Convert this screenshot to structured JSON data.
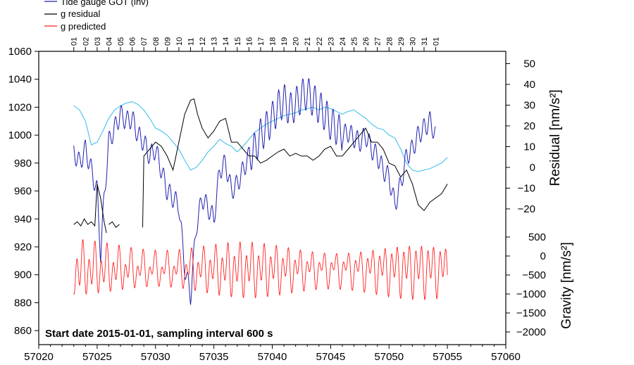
{
  "chart_data": {
    "type": "line",
    "title": "",
    "annotation": "Start date 2015-01-01, sampling interval 600 s",
    "xlim": [
      57020,
      57060
    ],
    "x_ticks": [
      57020,
      57025,
      57030,
      57035,
      57040,
      57045,
      57050,
      57055,
      57060
    ],
    "day_ticks": [
      "01",
      "02",
      "03",
      "04",
      "05",
      "06",
      "07",
      "08",
      "09",
      "10",
      "11",
      "12",
      "13",
      "14",
      "15",
      "16",
      "17",
      "18",
      "19",
      "20",
      "21",
      "22",
      "23",
      "24",
      "25",
      "26",
      "27",
      "28",
      "29",
      "30",
      "31",
      "01"
    ],
    "day_tick_start": 57023,
    "left_axis": {
      "ylim": [
        850,
        1060
      ],
      "ticks": [
        860,
        880,
        900,
        920,
        940,
        960,
        980,
        1000,
        1020,
        1040,
        1060
      ],
      "label": ""
    },
    "right_axis_residual": {
      "label": "Residual [nm/s²]",
      "ticks": [
        -20,
        -10,
        0,
        10,
        20,
        30,
        40,
        50
      ],
      "tick_labels": [
        "−20",
        "−10",
        "0",
        "10",
        "20",
        "30",
        "40",
        "50"
      ]
    },
    "right_axis_gravity": {
      "label": "Gravity [nm/s²]",
      "ticks": [
        500,
        0,
        -500,
        -1000,
        -1500,
        -2000
      ],
      "tick_labels": [
        "500",
        "0",
        "−500",
        "−1000",
        "−1500",
        "−2000"
      ]
    },
    "legend": {
      "placement": "top-left",
      "entries": [
        {
          "name": "Tide gauge GOT (inv)",
          "color": "#2020b0"
        },
        {
          "name": "g residual",
          "color": "#000000"
        },
        {
          "name": "g predicted",
          "color": "#ff2020"
        }
      ]
    },
    "series": [
      {
        "name": "Tide gauge GOT (inv)",
        "color": "#2020b0",
        "note": "hourly-scale oscillating trace, left axis units",
        "x": [
          57023.0,
          57023.5,
          57024.0,
          57024.5,
          57025.0,
          57025.3,
          57025.6,
          57026.0,
          57026.5,
          57027.0,
          57027.5,
          57028.0,
          57028.5,
          57029.0,
          57029.5,
          57030.0,
          57030.5,
          57031.0,
          57031.5,
          57032.0,
          57032.5,
          57033.0,
          57033.5,
          57034.0,
          57034.5,
          57035.0,
          57035.5,
          57036.0,
          57036.5,
          57037.0,
          57037.5,
          57038.0,
          57038.5,
          57039.0,
          57039.5,
          57040.0,
          57040.5,
          57041.0,
          57041.5,
          57042.0,
          57042.5,
          57043.0,
          57043.5,
          57044.0,
          57044.5,
          57045.0,
          57045.5,
          57046.0,
          57046.5,
          57047.0,
          57047.5,
          57048.0,
          57048.5,
          57049.0,
          57049.5,
          57050.0,
          57050.5,
          57051.0,
          57051.5,
          57052.0,
          57052.5,
          57053.0,
          57053.5,
          57054.0
        ],
        "values": [
          988,
          980,
          990,
          975,
          960,
          915,
          955,
          995,
          1005,
          1015,
          1010,
          1012,
          1000,
          995,
          985,
          990,
          975,
          960,
          955,
          950,
          905,
          885,
          935,
          955,
          948,
          940,
          975,
          980,
          960,
          965,
          975,
          985,
          990,
          1000,
          1005,
          1012,
          1020,
          1025,
          1018,
          1022,
          1028,
          1030,
          1025,
          1020,
          1015,
          1008,
          1005,
          1000,
          1002,
          998,
          995,
          1000,
          990,
          985,
          975,
          970,
          950,
          965,
          985,
          990,
          1000,
          1005,
          1010,
          1000
        ]
      },
      {
        "name": "g residual",
        "color": "#000000",
        "note": "plotted on left axis scale",
        "segments": [
          {
            "x": [
              57023.0,
              57023.3,
              57023.6,
              57023.9,
              57024.2,
              57024.5,
              57024.8,
              57025.0,
              57025.3,
              57025.6,
              57025.8
            ],
            "values": [
              936,
              938,
              935,
              940,
              936,
              938,
              935,
              965,
              955,
              938,
              930
            ]
          },
          {
            "x": [
              57026.0,
              57026.3,
              57026.6,
              57026.9
            ],
            "values": [
              936,
              938,
              934,
              936
            ]
          },
          {
            "x": [
              57028.9,
              57029.0,
              57029.5,
              57030.0,
              57030.5,
              57031.0,
              57031.5,
              57032.0,
              57032.5,
              57033.0,
              57033.3,
              57033.6,
              57034.0,
              57034.5,
              57035.0,
              57035.5,
              57036.0,
              57036.5,
              57037.0,
              57037.5,
              57038.0,
              57038.5,
              57039.0,
              57039.5,
              57040.0,
              57040.5,
              57041.0,
              57041.5,
              57042.0,
              57042.5,
              57043.0,
              57043.5,
              57044.0,
              57044.5,
              57045.0,
              57045.5,
              57046.0,
              57046.5,
              57047.0,
              57047.5,
              57048.0,
              57048.5,
              57049.0,
              57049.5,
              57050.0,
              57050.5,
              57051.0,
              57051.5,
              57052.0,
              57052.5,
              57053.0,
              57053.5,
              57054.0,
              57054.5,
              57055.0
            ],
            "values": [
              934,
              985,
              990,
              995,
              992,
              985,
              975,
              995,
              1015,
              1025,
              1026,
              1015,
              1005,
              998,
              1003,
              1010,
              1012,
              995,
              995,
              990,
              985,
              985,
              980,
              982,
              985,
              988,
              990,
              985,
              987,
              985,
              985,
              982,
              985,
              990,
              992,
              985,
              985,
              990,
              995,
              1000,
              1005,
              995,
              995,
              990,
              980,
              978,
              970,
              975,
              965,
              950,
              946,
              952,
              955,
              958,
              965
            ]
          }
        ]
      },
      {
        "name": "g predicted",
        "color": "#ff2020",
        "note": "semi-diurnal tidal signal, plotted on left axis scale",
        "x_start": 57023.0,
        "x_end": 57055.0,
        "upper_envelope": 926,
        "lower_envelope": 882
      },
      {
        "name": "cyan smooth curve",
        "color": "#33bbe8",
        "x": [
          57023.0,
          57023.5,
          57024.0,
          57024.5,
          57025.0,
          57025.5,
          57026.0,
          57026.5,
          57027.0,
          57027.5,
          57028.0,
          57028.5,
          57029.0,
          57029.5,
          57030.0,
          57030.5,
          57031.0,
          57031.5,
          57032.0,
          57032.5,
          57033.0,
          57033.5,
          57034.0,
          57034.5,
          57035.0,
          57035.5,
          57036.0,
          57036.5,
          57037.0,
          57037.5,
          57038.0,
          57038.5,
          57039.0,
          57039.5,
          57040.0,
          57040.5,
          57041.0,
          57041.5,
          57042.0,
          57042.5,
          57043.0,
          57043.5,
          57044.0,
          57044.5,
          57045.0,
          57045.5,
          57046.0,
          57046.5,
          57047.0,
          57047.5,
          57048.0,
          57048.5,
          57049.0,
          57049.5,
          57050.0,
          57050.5,
          57051.0,
          57051.5,
          57052.0,
          57052.5,
          57053.0,
          57053.5,
          57054.0,
          57054.5,
          57055.0
        ],
        "values": [
          1021,
          1018,
          1010,
          993,
          995,
          1003,
          1012,
          1018,
          1021,
          1023,
          1024,
          1022,
          1018,
          1012,
          1005,
          1003,
          1000,
          995,
          990,
          982,
          975,
          977,
          982,
          988,
          992,
          997,
          994,
          992,
          988,
          992,
          997,
          1002,
          1005,
          1008,
          1010,
          1012,
          1014,
          1015,
          1016,
          1018,
          1019,
          1020,
          1018,
          1020,
          1019,
          1017,
          1015,
          1017,
          1018,
          1015,
          1012,
          1008,
          1005,
          1004,
          1000,
          998,
          990,
          980,
          975,
          974,
          975,
          976,
          978,
          980,
          984
        ]
      }
    ]
  }
}
